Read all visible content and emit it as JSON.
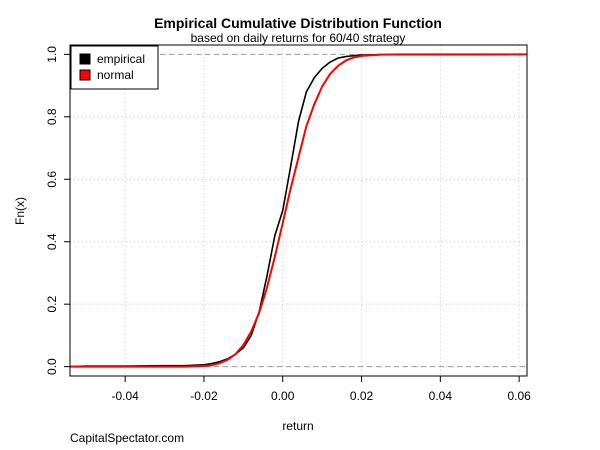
{
  "chart_data": {
    "type": "line",
    "title": "Empirical Cumulative Distribution Function",
    "subtitle": "based on daily returns for 60/40 strategy",
    "xlabel": "return",
    "ylabel": "Fn(x)",
    "xlim": [
      -0.054,
      0.062
    ],
    "ylim": [
      -0.03,
      1.03
    ],
    "x_ticks": [
      -0.04,
      -0.02,
      0.0,
      0.02,
      0.04,
      0.06
    ],
    "x_tick_labels": [
      "-0.04",
      "-0.02",
      "0.00",
      "0.02",
      "0.04",
      "0.06"
    ],
    "y_ticks": [
      0.0,
      0.2,
      0.4,
      0.6,
      0.8,
      1.0
    ],
    "y_tick_labels": [
      "0.0",
      "0.2",
      "0.4",
      "0.6",
      "0.8",
      "1.0"
    ],
    "grid": true,
    "reference_lines_y": [
      0,
      1
    ],
    "legend_position": "top-left",
    "series": [
      {
        "name": "empirical",
        "color": "#000000",
        "x": [
          -0.054,
          -0.05,
          -0.045,
          -0.04,
          -0.03,
          -0.025,
          -0.02,
          -0.018,
          -0.016,
          -0.014,
          -0.012,
          -0.01,
          -0.008,
          -0.006,
          -0.004,
          -0.002,
          0.0,
          0.002,
          0.004,
          0.006,
          0.008,
          0.01,
          0.012,
          0.014,
          0.016,
          0.018,
          0.02,
          0.025,
          0.03,
          0.04,
          0.05,
          0.058,
          0.062
        ],
        "y": [
          0.0,
          0.002,
          0.002,
          0.002,
          0.003,
          0.003,
          0.006,
          0.01,
          0.016,
          0.025,
          0.04,
          0.06,
          0.1,
          0.175,
          0.29,
          0.42,
          0.5,
          0.64,
          0.785,
          0.88,
          0.925,
          0.955,
          0.975,
          0.988,
          0.993,
          0.996,
          0.998,
          0.999,
          0.999,
          0.999,
          0.999,
          1.0,
          1.0
        ]
      },
      {
        "name": "normal",
        "color": "#ff0000",
        "x": [
          -0.054,
          -0.04,
          -0.03,
          -0.025,
          -0.02,
          -0.018,
          -0.016,
          -0.014,
          -0.012,
          -0.01,
          -0.008,
          -0.006,
          -0.004,
          -0.002,
          0.0,
          0.002,
          0.004,
          0.006,
          0.008,
          0.01,
          0.012,
          0.014,
          0.016,
          0.018,
          0.02,
          0.025,
          0.03,
          0.04,
          0.05,
          0.062
        ],
        "y": [
          0.0,
          0.0,
          0.0,
          0.0,
          0.002,
          0.005,
          0.011,
          0.022,
          0.04,
          0.069,
          0.113,
          0.172,
          0.253,
          0.352,
          0.46,
          0.57,
          0.67,
          0.77,
          0.84,
          0.897,
          0.937,
          0.963,
          0.98,
          0.99,
          0.995,
          0.999,
          1.0,
          1.0,
          1.0,
          1.0
        ]
      }
    ]
  },
  "footer": {
    "source": "CapitalSpectator.com"
  }
}
